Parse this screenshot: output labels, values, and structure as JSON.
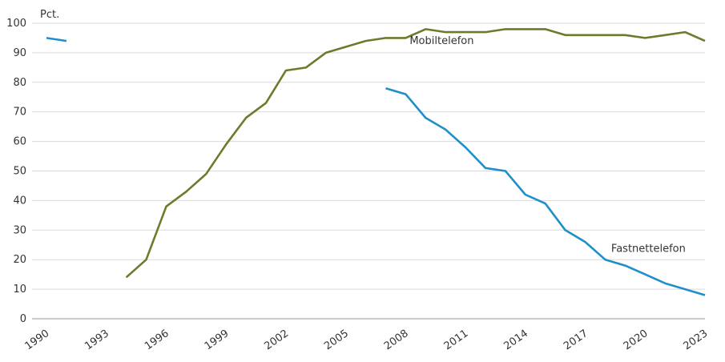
{
  "chart_data": {
    "type": "line",
    "title": "",
    "ylabel": "Pct.",
    "xlabel": "",
    "ylim": [
      0,
      100
    ],
    "yticks": [
      0,
      10,
      20,
      30,
      40,
      50,
      60,
      70,
      80,
      90,
      100
    ],
    "xlim": [
      1990,
      2023
    ],
    "xticks": [
      1990,
      1993,
      1996,
      1999,
      2002,
      2005,
      2008,
      2011,
      2014,
      2017,
      2020,
      2023
    ],
    "grid": true,
    "legend": "inline labels",
    "series": [
      {
        "name": "Mobiltelefon",
        "color": "#6e7a2b",
        "label_at": [
          2008.2,
          93
        ],
        "points": [
          [
            1994,
            14
          ],
          [
            1995,
            20
          ],
          [
            1996,
            38
          ],
          [
            1997,
            43
          ],
          [
            1998,
            49
          ],
          [
            1999,
            59
          ],
          [
            2000,
            68
          ],
          [
            2001,
            73
          ],
          [
            2002,
            84
          ],
          [
            2003,
            85
          ],
          [
            2004,
            90
          ],
          [
            2005,
            92
          ],
          [
            2006,
            94
          ],
          [
            2007,
            95
          ],
          [
            2008,
            95
          ],
          [
            2009,
            98
          ],
          [
            2010,
            97
          ],
          [
            2011,
            97
          ],
          [
            2012,
            97
          ],
          [
            2013,
            98
          ],
          [
            2014,
            98
          ],
          [
            2015,
            98
          ],
          [
            2016,
            96
          ],
          [
            2017,
            96
          ],
          [
            2018,
            96
          ],
          [
            2019,
            96
          ],
          [
            2020,
            95
          ],
          [
            2021,
            96
          ],
          [
            2022,
            97
          ],
          [
            2023,
            94
          ]
        ]
      },
      {
        "name": "Fastnettelefon",
        "color": "#1f8fc9",
        "label_at": [
          2018.3,
          22.6
        ],
        "points_pre": [
          [
            1990,
            95
          ],
          [
            1991,
            94
          ]
        ],
        "points": [
          [
            2007,
            78
          ],
          [
            2008,
            76
          ],
          [
            2009,
            68
          ],
          [
            2010,
            64
          ],
          [
            2011,
            58
          ],
          [
            2012,
            51
          ],
          [
            2013,
            50
          ],
          [
            2014,
            42
          ],
          [
            2015,
            39
          ],
          [
            2016,
            30
          ],
          [
            2017,
            26
          ],
          [
            2018,
            20
          ],
          [
            2019,
            18
          ],
          [
            2020,
            15
          ],
          [
            2021,
            12
          ],
          [
            2022,
            10
          ],
          [
            2023,
            8
          ]
        ]
      }
    ]
  }
}
